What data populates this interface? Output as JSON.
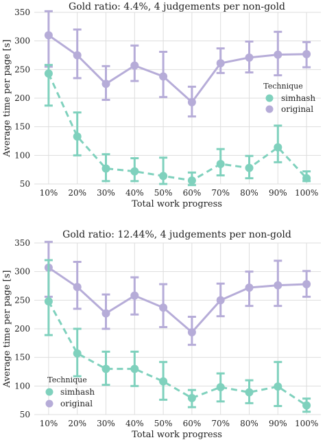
{
  "colors": {
    "simhash": "#7fd1bd",
    "original": "#b6acd8"
  },
  "chart_data": [
    {
      "type": "line",
      "title": "Gold ratio: 4.4%, 4 judgements per non-gold",
      "xlabel": "Total work progress",
      "ylabel": "Average time per page [s]",
      "categories": [
        "10%",
        "20%",
        "30%",
        "40%",
        "50%",
        "60%",
        "70%",
        "80%",
        "90%",
        "100%"
      ],
      "ylim": [
        50,
        350
      ],
      "yticks": [
        50,
        100,
        150,
        200,
        250,
        300,
        350
      ],
      "legend": {
        "title": "Technique",
        "position": "right",
        "labels": [
          "simhash",
          "original"
        ]
      },
      "series": [
        {
          "name": "simhash",
          "style": "dashed",
          "color": "#7fd1bd",
          "values": [
            243,
            133,
            77,
            72,
            64,
            56,
            85,
            78,
            114,
            60
          ],
          "lower": [
            187,
            100,
            55,
            55,
            50,
            48,
            65,
            60,
            88,
            55
          ],
          "upper": [
            258,
            175,
            102,
            95,
            96,
            70,
            111,
            99,
            152,
            72
          ]
        },
        {
          "name": "original",
          "style": "solid",
          "color": "#b6acd8",
          "values": [
            310,
            275,
            225,
            257,
            238,
            193,
            261,
            271,
            276,
            277
          ],
          "lower": [
            255,
            235,
            197,
            230,
            202,
            168,
            244,
            245,
            240,
            254
          ],
          "upper": [
            352,
            320,
            256,
            292,
            281,
            220,
            287,
            299,
            316,
            298
          ]
        }
      ]
    },
    {
      "type": "line",
      "title": "Gold ratio: 12.44%, 4 judgements per non-gold",
      "xlabel": "Total work progress",
      "ylabel": "Average time per page [s]",
      "categories": [
        "10%",
        "20%",
        "30%",
        "40%",
        "50%",
        "60%",
        "70%",
        "80%",
        "90%",
        "100%"
      ],
      "ylim": [
        50,
        350
      ],
      "yticks": [
        50,
        100,
        150,
        200,
        250,
        300,
        350
      ],
      "legend": {
        "title": "Technique",
        "position": "bottom-left",
        "labels": [
          "simhash",
          "original"
        ]
      },
      "series": [
        {
          "name": "simhash",
          "style": "dashed",
          "color": "#7fd1bd",
          "values": [
            248,
            157,
            130,
            130,
            108,
            79,
            98,
            89,
            99,
            66
          ],
          "lower": [
            189,
            117,
            102,
            100,
            76,
            63,
            73,
            70,
            65,
            55
          ],
          "upper": [
            320,
            200,
            160,
            160,
            142,
            93,
            122,
            110,
            142,
            78
          ]
        },
        {
          "name": "original",
          "style": "solid",
          "color": "#b6acd8",
          "values": [
            307,
            273,
            227,
            258,
            237,
            194,
            250,
            272,
            276,
            278
          ],
          "lower": [
            256,
            235,
            200,
            225,
            203,
            172,
            222,
            240,
            240,
            256
          ],
          "upper": [
            352,
            317,
            260,
            290,
            278,
            221,
            279,
            300,
            319,
            301
          ]
        }
      ]
    }
  ]
}
